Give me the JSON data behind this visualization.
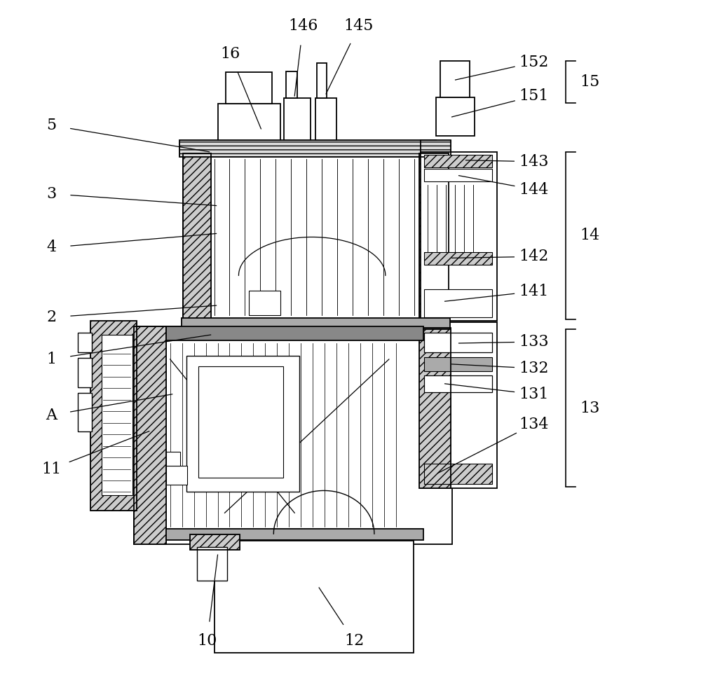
{
  "bg_color": "#ffffff",
  "line_color": "#000000",
  "label_fontsize": 16,
  "leader_lw": 0.9,
  "draw_lw": 1.3
}
